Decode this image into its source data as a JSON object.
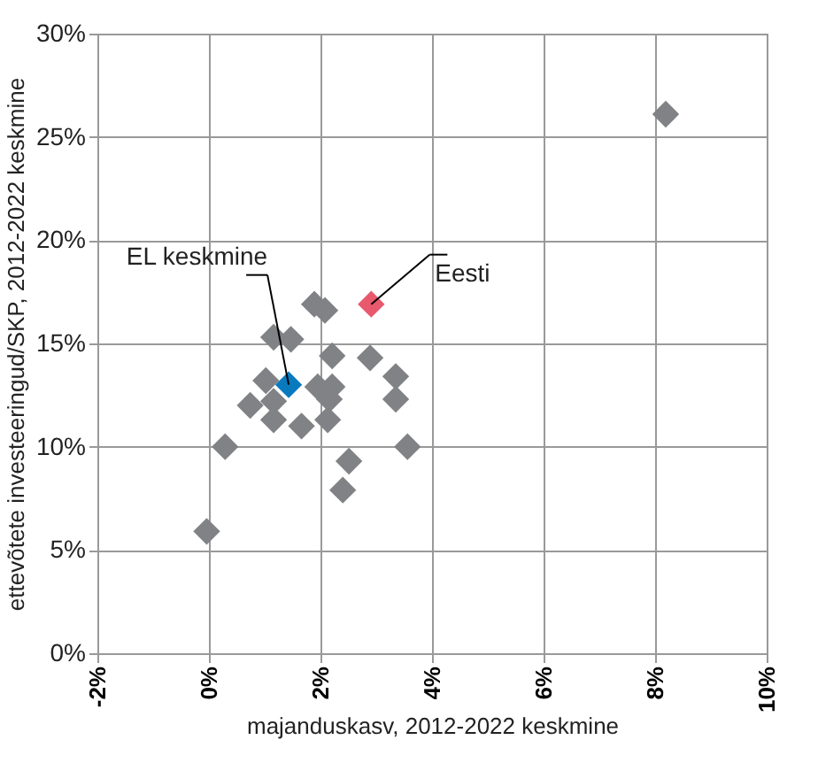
{
  "chart_data": {
    "type": "scatter",
    "xlabel": "majanduskasv, 2012-2022 keskmine",
    "ylabel": "ettevõtete investeeringud/SKP, 2012-2022 keskmine",
    "series": [
      {
        "color": "#808285",
        "x": [
          8.19,
          1.89,
          2.08,
          1.16,
          1.47,
          2.21,
          2.89,
          3.35,
          3.35,
          1.02,
          1.16,
          0.74,
          1.16,
          1.66,
          1.95,
          2.21,
          2.16,
          2.13,
          0.29,
          3.56,
          2.51,
          2.4,
          -0.04
        ],
        "values": [
          26.1,
          16.9,
          16.6,
          15.3,
          15.2,
          14.4,
          14.3,
          13.4,
          12.3,
          13.2,
          12.2,
          12.0,
          11.3,
          11.0,
          12.9,
          12.9,
          12.3,
          11.3,
          10.0,
          10.0,
          9.3,
          7.9,
          5.9
        ]
      },
      {
        "name": "EL keskmine",
        "color": "#0a7abf",
        "x": [
          1.43
        ],
        "values": [
          13.0
        ]
      },
      {
        "name": "Eesti",
        "color": "#e8596e",
        "x": [
          2.91
        ],
        "values": [
          16.9
        ]
      }
    ],
    "marker": "diamond",
    "grid": true,
    "xlim": [
      -2,
      10
    ],
    "ylim": [
      0,
      30
    ],
    "xticks": [
      {
        "value": -2,
        "label": "-2%"
      },
      {
        "value": 0,
        "label": "0%"
      },
      {
        "value": 2,
        "label": "2%"
      },
      {
        "value": 4,
        "label": "4%"
      },
      {
        "value": 6,
        "label": "6%"
      },
      {
        "value": 8,
        "label": "8%"
      },
      {
        "value": 10,
        "label": "10%"
      }
    ],
    "yticks": [
      {
        "value": 0,
        "label": "0%"
      },
      {
        "value": 5,
        "label": "5%"
      },
      {
        "value": 10,
        "label": "10%"
      },
      {
        "value": 15,
        "label": "15%"
      },
      {
        "value": 20,
        "label": "20%"
      },
      {
        "value": 25,
        "label": "25%"
      },
      {
        "value": 30,
        "label": "30%"
      }
    ]
  }
}
